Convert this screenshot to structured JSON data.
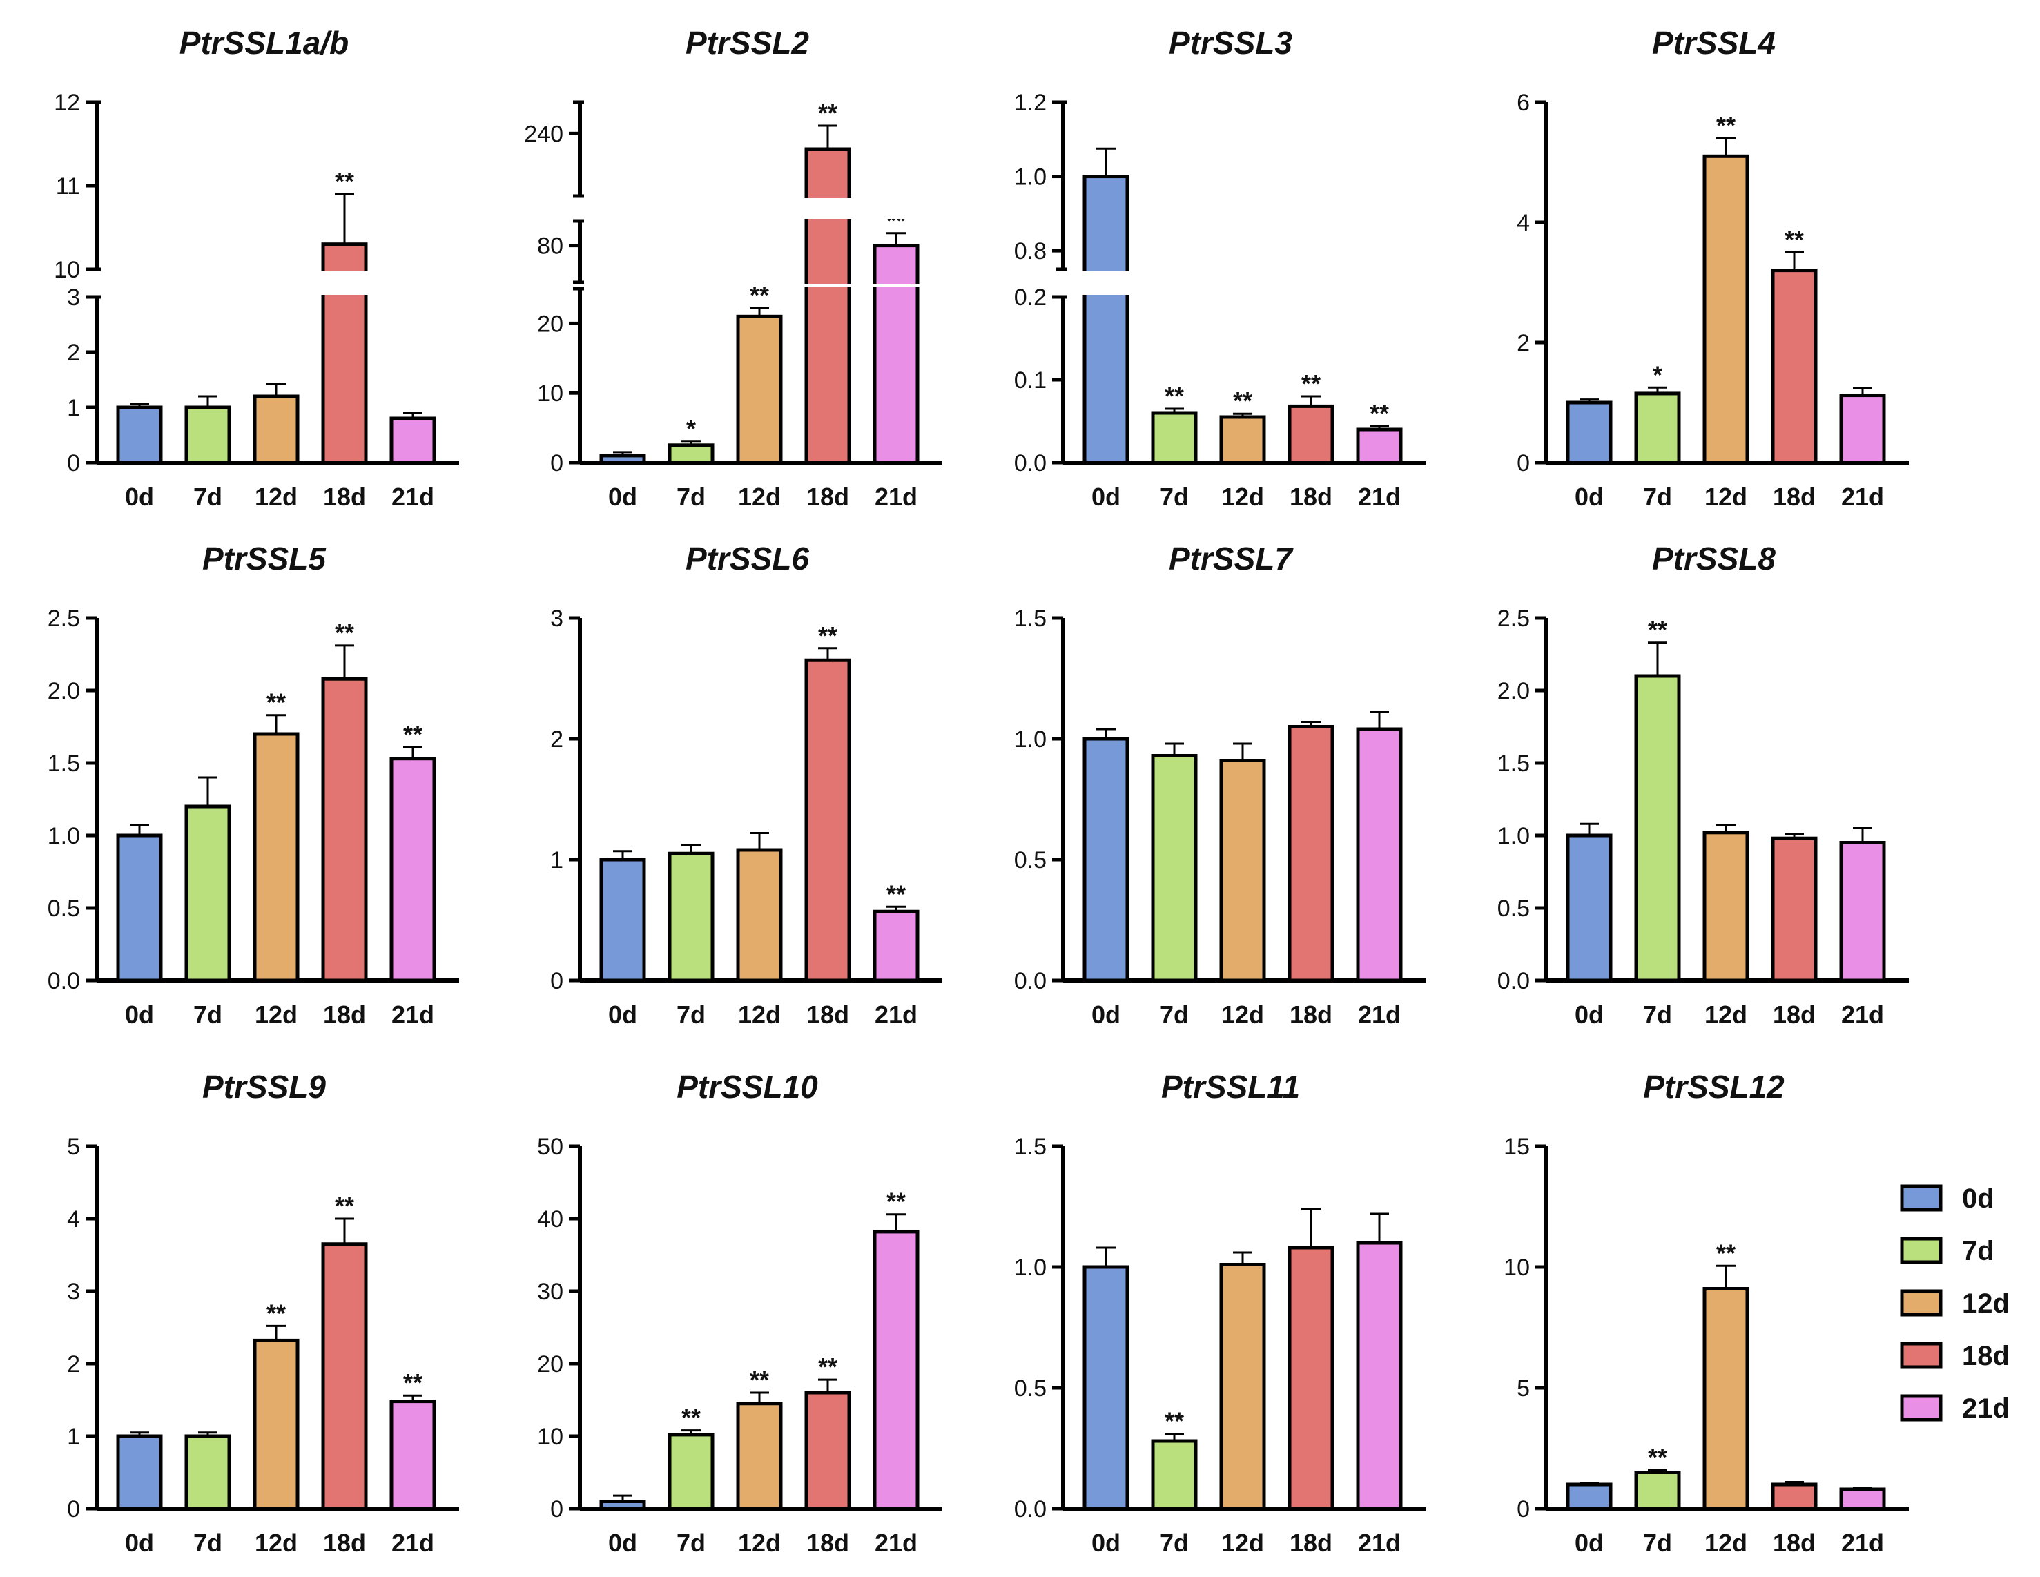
{
  "chart_data": {
    "type": "bar",
    "categories": [
      "0d",
      "7d",
      "12d",
      "18d",
      "21d"
    ],
    "colors": [
      "#7799d8",
      "#b9e07d",
      "#e3ac6b",
      "#e27572",
      "#ea8fe6"
    ],
    "legend": {
      "position": "right",
      "entries": [
        "0d",
        "7d",
        "12d",
        "18d",
        "21d"
      ]
    },
    "panels": [
      {
        "title": "PtrSSL1a/b",
        "values": [
          1.0,
          1.0,
          1.2,
          10.3,
          0.8
        ],
        "errors": [
          0.06,
          0.2,
          0.22,
          0.6,
          0.1
        ],
        "signif": [
          "",
          "",
          "",
          "**",
          ""
        ],
        "axis_break": true,
        "lower_ylim": [
          0,
          3
        ],
        "lower_ticks": [
          "0",
          "1",
          "2",
          "3"
        ],
        "upper_ylim": [
          10,
          12
        ],
        "upper_ticks": [
          "10",
          "11",
          "12"
        ]
      },
      {
        "title": "PtrSSL2",
        "values": [
          1.0,
          2.5,
          21.0,
          230,
          80
        ],
        "errors": [
          0.5,
          0.6,
          1.2,
          15,
          10
        ],
        "signif": [
          "",
          "*",
          "**",
          "**",
          "**"
        ],
        "axis_break": true,
        "lower_ylim": [
          0,
          25
        ],
        "lower_ticks": [
          "0",
          "10",
          "20"
        ],
        "middle_ylim": [
          50,
          100
        ],
        "middle_ticks": [
          "80"
        ],
        "upper_ylim": [
          200,
          260
        ],
        "upper_ticks": [
          "240"
        ]
      },
      {
        "title": "PtrSSL3",
        "values": [
          1.0,
          0.06,
          0.055,
          0.068,
          0.04
        ],
        "errors": [
          0.075,
          0.005,
          0.004,
          0.012,
          0.004
        ],
        "signif": [
          "",
          "**",
          "**",
          "**",
          "**"
        ],
        "axis_break": true,
        "lower_ylim": [
          0,
          0.2
        ],
        "lower_ticks": [
          "0.0",
          "0.1",
          "0.2"
        ],
        "upper_ylim": [
          0.75,
          1.2
        ],
        "upper_ticks": [
          "0.8",
          "1.0",
          "1.2"
        ]
      },
      {
        "title": "PtrSSL4",
        "values": [
          1.0,
          1.15,
          5.1,
          3.2,
          1.12
        ],
        "errors": [
          0.05,
          0.1,
          0.3,
          0.3,
          0.12
        ],
        "signif": [
          "",
          "*",
          "**",
          "**",
          ""
        ],
        "ylim": [
          0,
          6
        ],
        "ticks": [
          "0",
          "2",
          "4",
          "6"
        ]
      },
      {
        "title": "PtrSSL5",
        "values": [
          1.0,
          1.2,
          1.7,
          2.08,
          1.53
        ],
        "errors": [
          0.07,
          0.2,
          0.13,
          0.23,
          0.08
        ],
        "signif": [
          "",
          "",
          "**",
          "**",
          "**"
        ],
        "ylim": [
          0,
          2.5
        ],
        "ticks": [
          "0.0",
          "0.5",
          "1.0",
          "1.5",
          "2.0",
          "2.5"
        ]
      },
      {
        "title": "PtrSSL6",
        "values": [
          1.0,
          1.05,
          1.08,
          2.65,
          0.57
        ],
        "errors": [
          0.07,
          0.07,
          0.14,
          0.1,
          0.04
        ],
        "signif": [
          "",
          "",
          "",
          "**",
          "**"
        ],
        "ylim": [
          0,
          3
        ],
        "ticks": [
          "0",
          "1",
          "2",
          "3"
        ]
      },
      {
        "title": "PtrSSL7",
        "values": [
          1.0,
          0.93,
          0.91,
          1.05,
          1.04
        ],
        "errors": [
          0.04,
          0.05,
          0.07,
          0.02,
          0.07
        ],
        "signif": [
          "",
          "",
          "",
          "",
          ""
        ],
        "ylim": [
          0,
          1.5
        ],
        "ticks": [
          "0.0",
          "0.5",
          "1.0",
          "1.5"
        ]
      },
      {
        "title": "PtrSSL8",
        "values": [
          1.0,
          2.1,
          1.02,
          0.98,
          0.95
        ],
        "errors": [
          0.08,
          0.23,
          0.05,
          0.03,
          0.1
        ],
        "signif": [
          "",
          "**",
          "",
          "",
          ""
        ],
        "ylim": [
          0,
          2.5
        ],
        "ticks": [
          "0.0",
          "0.5",
          "1.0",
          "1.5",
          "2.0",
          "2.5"
        ]
      },
      {
        "title": "PtrSSL9",
        "values": [
          1.0,
          1.0,
          2.32,
          3.65,
          1.48
        ],
        "errors": [
          0.05,
          0.05,
          0.2,
          0.35,
          0.08
        ],
        "signif": [
          "",
          "",
          "**",
          "**",
          "**"
        ],
        "ylim": [
          0,
          5
        ],
        "ticks": [
          "0",
          "1",
          "2",
          "3",
          "4",
          "5"
        ]
      },
      {
        "title": "PtrSSL10",
        "values": [
          1.0,
          10.2,
          14.5,
          16.0,
          38.2
        ],
        "errors": [
          0.8,
          0.6,
          1.5,
          1.8,
          2.4
        ],
        "signif": [
          "",
          "**",
          "**",
          "**",
          "**"
        ],
        "ylim": [
          0,
          50
        ],
        "ticks": [
          "0",
          "10",
          "20",
          "30",
          "40",
          "50"
        ]
      },
      {
        "title": "PtrSSL11",
        "values": [
          1.0,
          0.28,
          1.01,
          1.08,
          1.1
        ],
        "errors": [
          0.08,
          0.03,
          0.05,
          0.16,
          0.12
        ],
        "signif": [
          "",
          "**",
          "",
          "",
          ""
        ],
        "ylim": [
          0,
          1.5
        ],
        "ticks": [
          "0.0",
          "0.5",
          "1.0",
          "1.5"
        ]
      },
      {
        "title": "PtrSSL12",
        "values": [
          1.0,
          1.5,
          9.1,
          1.0,
          0.8
        ],
        "errors": [
          0.06,
          0.1,
          0.95,
          0.1,
          0.05
        ],
        "signif": [
          "",
          "**",
          "**",
          "",
          ""
        ],
        "ylim": [
          0,
          15
        ],
        "ticks": [
          "0",
          "5",
          "10",
          "15"
        ]
      }
    ]
  }
}
